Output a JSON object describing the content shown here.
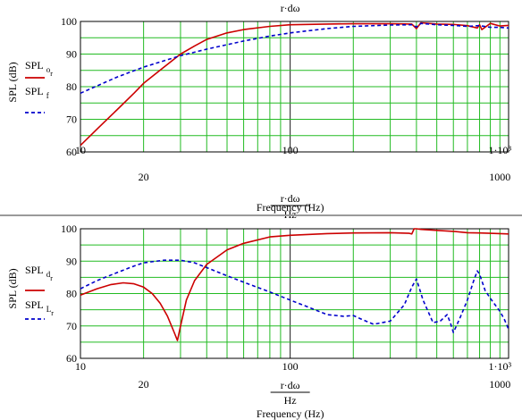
{
  "chart_data": [
    {
      "type": "line",
      "x_scale": "log",
      "xlim": [
        10,
        1100
      ],
      "ylim": [
        60,
        100
      ],
      "grid": true,
      "legend_placement": "left",
      "top_label": "r·dω",
      "ylabel": "SPL (dB)",
      "x_ticks_minor_labels": [
        "10",
        "100",
        "1·10³"
      ],
      "x_ticks_major_labels": [
        "20",
        "1000"
      ],
      "y_tick_labels": [
        "60",
        "70",
        "80",
        "90",
        "100"
      ],
      "xlabel_num": "r·dω",
      "xlabel_den": "Hz",
      "xlabel": "Frequency (Hz)",
      "series": [
        {
          "name": "SPL o r",
          "name_base": "SPL",
          "name_sub": "o",
          "name_subsub": "r",
          "color": "#cc0000",
          "dash": "solid",
          "x": [
            10,
            12,
            15,
            18,
            20,
            25,
            30,
            35,
            40,
            50,
            60,
            80,
            100,
            150,
            200,
            300,
            380,
            400,
            420,
            500,
            600,
            700,
            780,
            800,
            820,
            900,
            1000,
            1100
          ],
          "y": [
            62,
            67,
            73,
            78,
            81,
            86,
            90,
            92.5,
            94.5,
            96.5,
            97.5,
            98.5,
            99,
            99.2,
            99.3,
            99.3,
            99.2,
            97.8,
            99.6,
            99.2,
            99.1,
            98.7,
            98,
            99,
            97.5,
            99.4,
            98.6,
            98.8
          ]
        },
        {
          "name": "SPL f",
          "name_base": "SPL",
          "name_sub": "f",
          "name_subsub": "",
          "color": "#0000cc",
          "dash": "4,3",
          "x": [
            10,
            15,
            20,
            30,
            40,
            60,
            80,
            100,
            150,
            200,
            300,
            380,
            400,
            420,
            500,
            600,
            700,
            800,
            900,
            1000,
            1100
          ],
          "y": [
            78,
            83,
            86,
            89.5,
            91.5,
            94,
            95.5,
            96.5,
            97.8,
            98.5,
            98.9,
            99,
            98.3,
            99.4,
            99,
            98.8,
            98.5,
            98.7,
            98.2,
            98.2,
            98
          ]
        }
      ]
    },
    {
      "type": "line",
      "x_scale": "log",
      "xlim": [
        10,
        1100
      ],
      "ylim": [
        60,
        100
      ],
      "grid": true,
      "legend_placement": "left",
      "ylabel": "SPL (dB)",
      "x_ticks_minor_labels": [
        "10",
        "100",
        "1·10³"
      ],
      "x_ticks_major_labels": [
        "20",
        "1000"
      ],
      "y_tick_labels": [
        "60",
        "70",
        "80",
        "90",
        "100"
      ],
      "xlabel_num": "r·dω",
      "xlabel_den": "Hz",
      "xlabel": "Frequency (Hz)",
      "series": [
        {
          "name": "SPL d r",
          "name_base": "SPL",
          "name_sub": "d",
          "name_subsub": "r",
          "color": "#cc0000",
          "dash": "solid",
          "x": [
            10,
            12,
            14,
            16,
            18,
            20,
            22,
            24,
            26,
            28,
            29,
            30,
            32,
            35,
            40,
            50,
            60,
            80,
            100,
            150,
            200,
            300,
            370,
            380,
            390,
            400,
            420,
            500,
            600,
            700,
            800,
            900,
            1000,
            1100
          ],
          "y": [
            79.5,
            81.5,
            82.8,
            83.3,
            83,
            82,
            80,
            77,
            73,
            68,
            65.5,
            70,
            78,
            84,
            89,
            93.5,
            95.5,
            97.5,
            98,
            98.5,
            98.7,
            98.8,
            98.6,
            98.4,
            100,
            100,
            99.8,
            99.5,
            99.2,
            98.8,
            98.7,
            98.6,
            98.5,
            98.4
          ]
        },
        {
          "name": "SPL L r",
          "name_base": "SPL",
          "name_sub": "L",
          "name_subsub": "r",
          "color": "#0000cc",
          "dash": "4,3",
          "x": [
            10,
            12,
            15,
            18,
            20,
            25,
            30,
            35,
            40,
            50,
            60,
            80,
            100,
            120,
            150,
            180,
            200,
            220,
            250,
            300,
            350,
            380,
            400,
            430,
            480,
            520,
            560,
            580,
            600,
            620,
            650,
            700,
            750,
            780,
            800,
            850,
            900,
            1000,
            1050,
            1100
          ],
          "y": [
            81.5,
            84,
            86.5,
            88.5,
            89.5,
            90.3,
            90.3,
            89.5,
            88,
            85.5,
            83.5,
            80.5,
            78,
            76,
            73.5,
            73,
            73.2,
            72,
            70.5,
            71.5,
            76.5,
            82,
            84.5,
            78,
            71,
            71.5,
            73.5,
            71,
            68,
            70,
            73,
            78,
            84,
            87,
            86,
            81,
            78.5,
            74.5,
            72,
            69
          ]
        }
      ]
    }
  ]
}
